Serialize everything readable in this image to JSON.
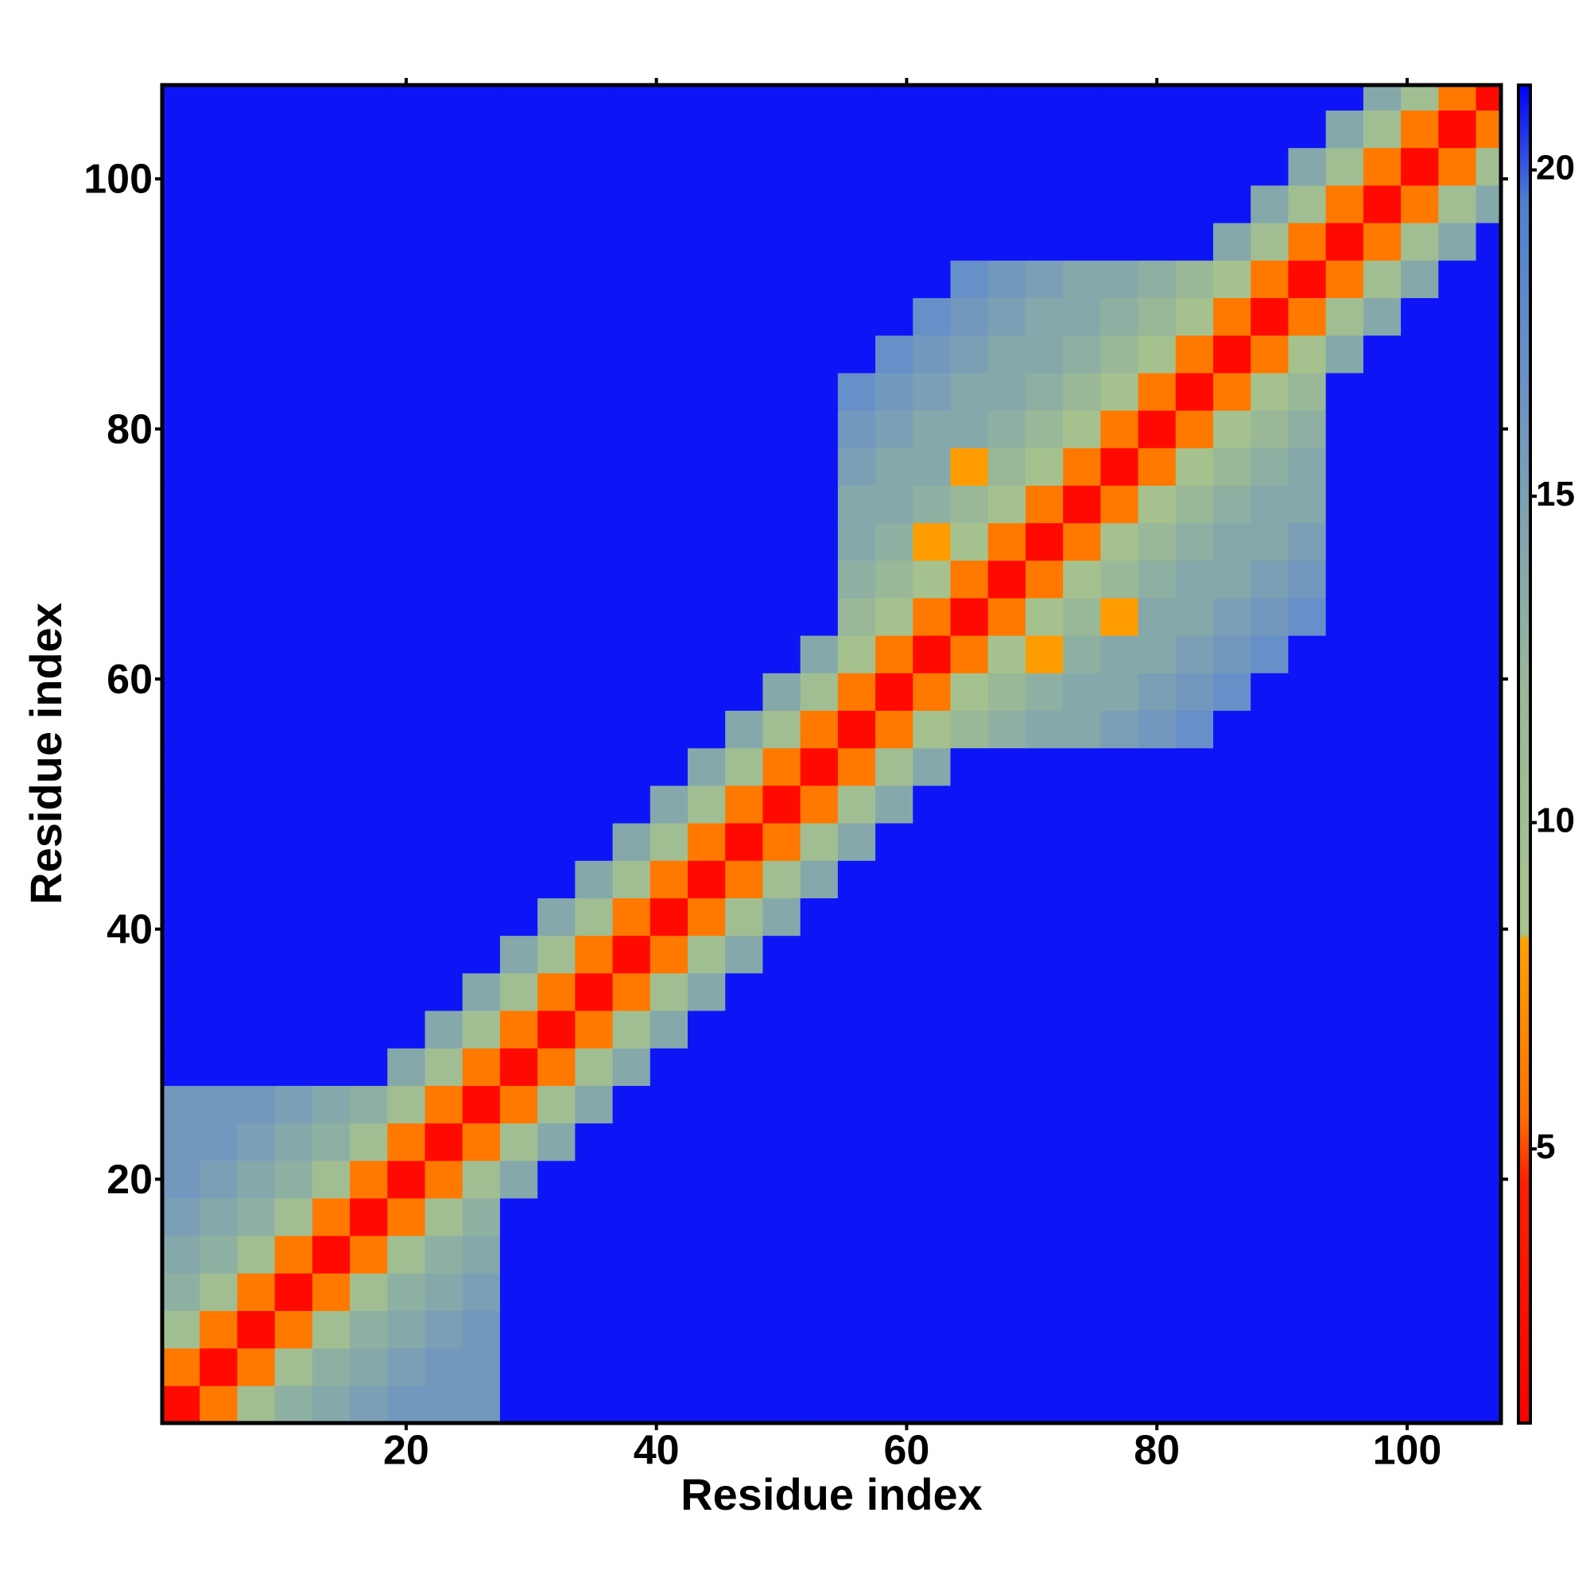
{
  "chart_data": {
    "type": "heatmap",
    "xlabel": "Residue index",
    "ylabel": "Residue index",
    "x": [
      2,
      5,
      8,
      11,
      14,
      17,
      20,
      23,
      26,
      29,
      32,
      35,
      38,
      41,
      44,
      47,
      50,
      53,
      56,
      59,
      62,
      65,
      68,
      71,
      74,
      77,
      80,
      83,
      86,
      89,
      92,
      95,
      98,
      101,
      104,
      107
    ],
    "y": [
      2,
      5,
      8,
      11,
      14,
      17,
      20,
      23,
      26,
      29,
      32,
      35,
      38,
      41,
      44,
      47,
      50,
      53,
      56,
      59,
      62,
      65,
      68,
      71,
      74,
      77,
      80,
      83,
      86,
      89,
      92,
      95,
      98,
      101,
      104,
      107
    ],
    "xlim": [
      0.5,
      107.5
    ],
    "ylim": [
      0.5,
      107.5
    ],
    "xticks": [
      20,
      40,
      60,
      80,
      100
    ],
    "yticks": [
      20,
      40,
      60,
      80,
      100
    ],
    "colorbar": {
      "lim": [
        0.8,
        21.3
      ],
      "ticks": [
        5,
        10,
        15,
        20
      ]
    },
    "colorscale": [
      [
        0.8,
        "#ff0000"
      ],
      [
        4.5,
        "#ff2000"
      ],
      [
        5.5,
        "#ff7000"
      ],
      [
        8.2,
        "#ffa000"
      ],
      [
        8.3,
        "#a8c48c"
      ],
      [
        12,
        "#98b898"
      ],
      [
        17,
        "#6890c8"
      ],
      [
        19.5,
        "#5080d0"
      ],
      [
        21.3,
        "#0000ff"
      ]
    ],
    "z": [
      [
        2,
        6,
        10,
        13,
        14,
        15,
        16,
        16,
        16,
        21,
        21,
        21,
        21,
        21,
        21,
        21,
        21,
        21,
        21,
        21,
        21,
        21,
        21,
        21,
        21,
        21,
        21,
        21,
        21,
        21,
        21,
        21,
        21,
        21,
        21,
        21
      ],
      [
        6,
        2,
        6,
        10,
        13,
        14,
        15,
        16,
        16,
        21,
        21,
        21,
        21,
        21,
        21,
        21,
        21,
        21,
        21,
        21,
        21,
        21,
        21,
        21,
        21,
        21,
        21,
        21,
        21,
        21,
        21,
        21,
        21,
        21,
        21,
        21
      ],
      [
        10,
        6,
        2,
        6,
        10,
        13,
        14,
        15,
        16,
        21,
        21,
        21,
        21,
        21,
        21,
        21,
        21,
        21,
        21,
        21,
        21,
        21,
        21,
        21,
        21,
        21,
        21,
        21,
        21,
        21,
        21,
        21,
        21,
        21,
        21,
        21
      ],
      [
        13,
        10,
        6,
        2,
        6,
        10,
        13,
        14,
        15,
        21,
        21,
        21,
        21,
        21,
        21,
        21,
        21,
        21,
        21,
        21,
        21,
        21,
        21,
        21,
        21,
        21,
        21,
        21,
        21,
        21,
        21,
        21,
        21,
        21,
        21,
        21
      ],
      [
        14,
        13,
        10,
        6,
        2,
        6,
        10,
        13,
        14,
        21,
        21,
        21,
        21,
        21,
        21,
        21,
        21,
        21,
        21,
        21,
        21,
        21,
        21,
        21,
        21,
        21,
        21,
        21,
        21,
        21,
        21,
        21,
        21,
        21,
        21,
        21
      ],
      [
        15,
        14,
        13,
        10,
        6,
        2,
        6,
        10,
        13,
        21,
        21,
        21,
        21,
        21,
        21,
        21,
        21,
        21,
        21,
        21,
        21,
        21,
        21,
        21,
        21,
        21,
        21,
        21,
        21,
        21,
        21,
        21,
        21,
        21,
        21,
        21
      ],
      [
        16,
        15,
        14,
        13,
        10,
        6,
        2,
        6,
        10,
        14,
        21,
        21,
        21,
        21,
        21,
        21,
        21,
        21,
        21,
        21,
        21,
        21,
        21,
        21,
        21,
        21,
        21,
        21,
        21,
        21,
        21,
        21,
        21,
        21,
        21,
        21
      ],
      [
        16,
        16,
        15,
        14,
        13,
        10,
        6,
        2,
        6,
        10,
        14,
        21,
        21,
        21,
        21,
        21,
        21,
        21,
        21,
        21,
        21,
        21,
        21,
        21,
        21,
        21,
        21,
        21,
        21,
        21,
        21,
        21,
        21,
        21,
        21,
        21
      ],
      [
        16,
        16,
        16,
        15,
        14,
        13,
        10,
        6,
        2,
        6,
        10,
        14,
        21,
        21,
        21,
        21,
        21,
        21,
        21,
        21,
        21,
        21,
        21,
        21,
        21,
        21,
        21,
        21,
        21,
        21,
        21,
        21,
        21,
        21,
        21,
        21
      ],
      [
        21,
        21,
        21,
        21,
        21,
        21,
        14,
        10,
        6,
        2,
        6,
        10,
        14,
        21,
        21,
        21,
        21,
        21,
        21,
        21,
        21,
        21,
        21,
        21,
        21,
        21,
        21,
        21,
        21,
        21,
        21,
        21,
        21,
        21,
        21,
        21
      ],
      [
        21,
        21,
        21,
        21,
        21,
        21,
        21,
        14,
        10,
        6,
        2,
        6,
        10,
        14,
        21,
        21,
        21,
        21,
        21,
        21,
        21,
        21,
        21,
        21,
        21,
        21,
        21,
        21,
        21,
        21,
        21,
        21,
        21,
        21,
        21,
        21
      ],
      [
        21,
        21,
        21,
        21,
        21,
        21,
        21,
        21,
        14,
        10,
        6,
        2,
        6,
        10,
        14,
        21,
        21,
        21,
        21,
        21,
        21,
        21,
        21,
        21,
        21,
        21,
        21,
        21,
        21,
        21,
        21,
        21,
        21,
        21,
        21,
        21
      ],
      [
        21,
        21,
        21,
        21,
        21,
        21,
        21,
        21,
        21,
        14,
        10,
        6,
        2,
        6,
        10,
        14,
        21,
        21,
        21,
        21,
        21,
        21,
        21,
        21,
        21,
        21,
        21,
        21,
        21,
        21,
        21,
        21,
        21,
        21,
        21,
        21
      ],
      [
        21,
        21,
        21,
        21,
        21,
        21,
        21,
        21,
        21,
        21,
        14,
        10,
        6,
        2,
        6,
        10,
        14,
        21,
        21,
        21,
        21,
        21,
        21,
        21,
        21,
        21,
        21,
        21,
        21,
        21,
        21,
        21,
        21,
        21,
        21,
        21
      ],
      [
        21,
        21,
        21,
        21,
        21,
        21,
        21,
        21,
        21,
        21,
        21,
        14,
        10,
        6,
        2,
        6,
        10,
        14,
        21,
        21,
        21,
        21,
        21,
        21,
        21,
        21,
        21,
        21,
        21,
        21,
        21,
        21,
        21,
        21,
        21,
        21
      ],
      [
        21,
        21,
        21,
        21,
        21,
        21,
        21,
        21,
        21,
        21,
        21,
        21,
        14,
        10,
        6,
        2,
        6,
        10,
        14,
        21,
        21,
        21,
        21,
        21,
        21,
        21,
        21,
        21,
        21,
        21,
        21,
        21,
        21,
        21,
        21,
        21
      ],
      [
        21,
        21,
        21,
        21,
        21,
        21,
        21,
        21,
        21,
        21,
        21,
        21,
        21,
        14,
        10,
        6,
        2,
        6,
        10,
        14,
        21,
        21,
        21,
        21,
        21,
        21,
        21,
        21,
        21,
        21,
        21,
        21,
        21,
        21,
        21,
        21
      ],
      [
        21,
        21,
        21,
        21,
        21,
        21,
        21,
        21,
        21,
        21,
        21,
        21,
        21,
        21,
        14,
        10,
        6,
        2,
        6,
        10,
        14,
        21,
        21,
        21,
        21,
        21,
        21,
        21,
        21,
        21,
        21,
        21,
        21,
        21,
        21,
        21
      ],
      [
        21,
        21,
        21,
        21,
        21,
        21,
        21,
        21,
        21,
        21,
        21,
        21,
        21,
        21,
        21,
        14,
        10,
        6,
        2,
        6,
        9,
        12,
        13,
        14,
        14,
        15,
        16,
        17,
        21,
        21,
        21,
        21,
        21,
        21,
        21,
        21
      ],
      [
        21,
        21,
        21,
        21,
        21,
        21,
        21,
        21,
        21,
        21,
        21,
        21,
        21,
        21,
        21,
        21,
        14,
        10,
        6,
        2,
        6,
        9,
        12,
        13,
        14,
        14,
        15,
        16,
        17,
        21,
        21,
        21,
        21,
        21,
        21,
        21
      ],
      [
        21,
        21,
        21,
        21,
        21,
        21,
        21,
        21,
        21,
        21,
        21,
        21,
        21,
        21,
        21,
        21,
        21,
        14,
        9,
        6,
        2,
        6,
        9,
        8,
        13,
        14,
        14,
        15,
        16,
        17,
        21,
        21,
        21,
        21,
        21,
        21
      ],
      [
        21,
        21,
        21,
        21,
        21,
        21,
        21,
        21,
        21,
        21,
        21,
        21,
        21,
        21,
        21,
        21,
        21,
        21,
        12,
        9,
        6,
        2,
        6,
        9,
        12,
        8,
        14,
        14,
        15,
        16,
        17,
        21,
        21,
        21,
        21,
        21
      ],
      [
        21,
        21,
        21,
        21,
        21,
        21,
        21,
        21,
        21,
        21,
        21,
        21,
        21,
        21,
        21,
        21,
        21,
        21,
        13,
        12,
        9,
        6,
        2,
        6,
        9,
        12,
        13,
        14,
        14,
        15,
        16,
        21,
        21,
        21,
        21,
        21
      ],
      [
        21,
        21,
        21,
        21,
        21,
        21,
        21,
        21,
        21,
        21,
        21,
        21,
        21,
        21,
        21,
        21,
        21,
        21,
        14,
        13,
        8,
        9,
        6,
        2,
        6,
        9,
        12,
        13,
        14,
        14,
        15,
        21,
        21,
        21,
        21,
        21
      ],
      [
        21,
        21,
        21,
        21,
        21,
        21,
        21,
        21,
        21,
        21,
        21,
        21,
        21,
        21,
        21,
        21,
        21,
        21,
        14,
        14,
        13,
        12,
        9,
        6,
        2,
        6,
        9,
        12,
        13,
        14,
        14,
        21,
        21,
        21,
        21,
        21
      ],
      [
        21,
        21,
        21,
        21,
        21,
        21,
        21,
        21,
        21,
        21,
        21,
        21,
        21,
        21,
        21,
        21,
        21,
        21,
        15,
        14,
        14,
        8,
        12,
        9,
        6,
        2,
        6,
        9,
        12,
        13,
        14,
        21,
        21,
        21,
        21,
        21
      ],
      [
        21,
        21,
        21,
        21,
        21,
        21,
        21,
        21,
        21,
        21,
        21,
        21,
        21,
        21,
        21,
        21,
        21,
        21,
        16,
        15,
        14,
        14,
        13,
        12,
        9,
        6,
        2,
        6,
        9,
        12,
        13,
        21,
        21,
        21,
        21,
        21
      ],
      [
        21,
        21,
        21,
        21,
        21,
        21,
        21,
        21,
        21,
        21,
        21,
        21,
        21,
        21,
        21,
        21,
        21,
        21,
        17,
        16,
        15,
        14,
        14,
        13,
        12,
        9,
        6,
        2,
        6,
        9,
        12,
        21,
        21,
        21,
        21,
        21
      ],
      [
        21,
        21,
        21,
        21,
        21,
        21,
        21,
        21,
        21,
        21,
        21,
        21,
        21,
        21,
        21,
        21,
        21,
        21,
        21,
        17,
        16,
        15,
        14,
        14,
        13,
        12,
        9,
        6,
        2,
        6,
        9,
        14,
        21,
        21,
        21,
        21
      ],
      [
        21,
        21,
        21,
        21,
        21,
        21,
        21,
        21,
        21,
        21,
        21,
        21,
        21,
        21,
        21,
        21,
        21,
        21,
        21,
        21,
        17,
        16,
        15,
        14,
        14,
        13,
        12,
        9,
        6,
        2,
        6,
        10,
        14,
        21,
        21,
        21
      ],
      [
        21,
        21,
        21,
        21,
        21,
        21,
        21,
        21,
        21,
        21,
        21,
        21,
        21,
        21,
        21,
        21,
        21,
        21,
        21,
        21,
        21,
        17,
        16,
        15,
        14,
        14,
        13,
        12,
        9,
        6,
        2,
        6,
        10,
        14,
        21,
        21
      ],
      [
        21,
        21,
        21,
        21,
        21,
        21,
        21,
        21,
        21,
        21,
        21,
        21,
        21,
        21,
        21,
        21,
        21,
        21,
        21,
        21,
        21,
        21,
        21,
        21,
        21,
        21,
        21,
        21,
        14,
        10,
        6,
        2,
        6,
        10,
        14,
        21
      ],
      [
        21,
        21,
        21,
        21,
        21,
        21,
        21,
        21,
        21,
        21,
        21,
        21,
        21,
        21,
        21,
        21,
        21,
        21,
        21,
        21,
        21,
        21,
        21,
        21,
        21,
        21,
        21,
        21,
        21,
        14,
        10,
        6,
        2,
        6,
        10,
        14
      ],
      [
        21,
        21,
        21,
        21,
        21,
        21,
        21,
        21,
        21,
        21,
        21,
        21,
        21,
        21,
        21,
        21,
        21,
        21,
        21,
        21,
        21,
        21,
        21,
        21,
        21,
        21,
        21,
        21,
        21,
        21,
        14,
        10,
        6,
        2,
        6,
        10
      ],
      [
        21,
        21,
        21,
        21,
        21,
        21,
        21,
        21,
        21,
        21,
        21,
        21,
        21,
        21,
        21,
        21,
        21,
        21,
        21,
        21,
        21,
        21,
        21,
        21,
        21,
        21,
        21,
        21,
        21,
        21,
        21,
        14,
        10,
        6,
        2,
        6
      ],
      [
        21,
        21,
        21,
        21,
        21,
        21,
        21,
        21,
        21,
        21,
        21,
        21,
        21,
        21,
        21,
        21,
        21,
        21,
        21,
        21,
        21,
        21,
        21,
        21,
        21,
        21,
        21,
        21,
        21,
        21,
        21,
        21,
        14,
        10,
        6,
        2
      ]
    ]
  }
}
